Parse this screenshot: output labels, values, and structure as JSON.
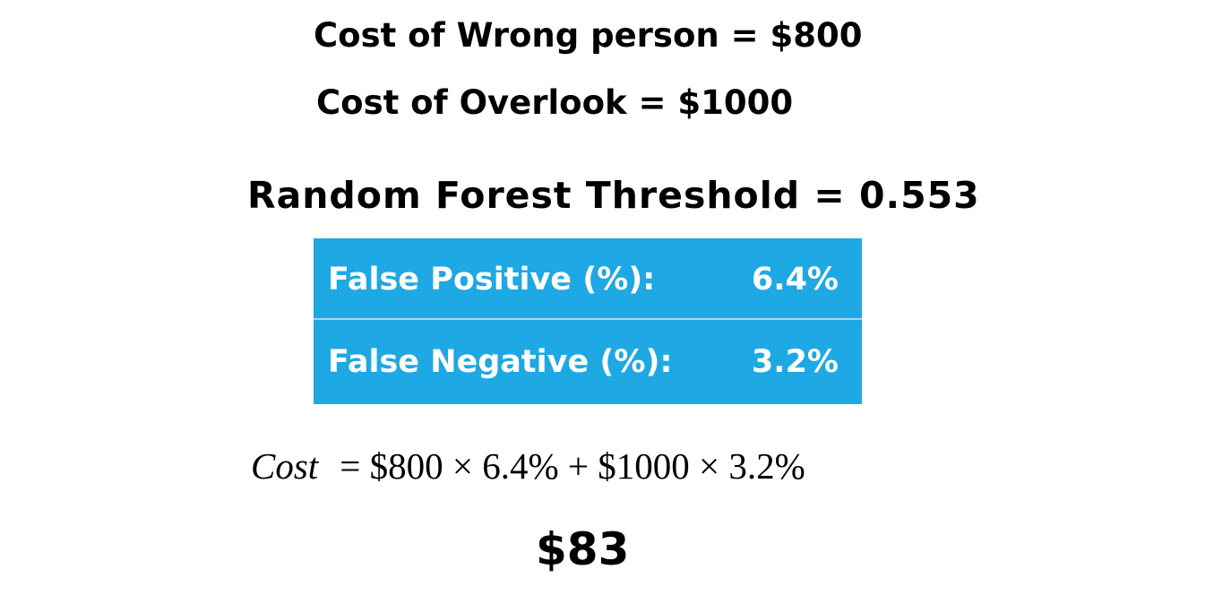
{
  "costs": {
    "wrong_person": "Cost of Wrong person = $800",
    "overlook": "Cost of Overlook = $1000"
  },
  "model": {
    "threshold_line": "Random Forest  Threshold = 0.553"
  },
  "rates": [
    {
      "label": "False Positive (%):",
      "value": "6.4%"
    },
    {
      "label": "False Negative (%):",
      "value": "3.2%"
    }
  ],
  "formula": {
    "variable": "Cost",
    "expression": "= $800 × 6.4%  + $1000 × 3.2%"
  },
  "result": "$83",
  "colors": {
    "table_background": "#1ea8e4",
    "table_text": "#ffffff",
    "row_divider": "#9fd7f2"
  }
}
